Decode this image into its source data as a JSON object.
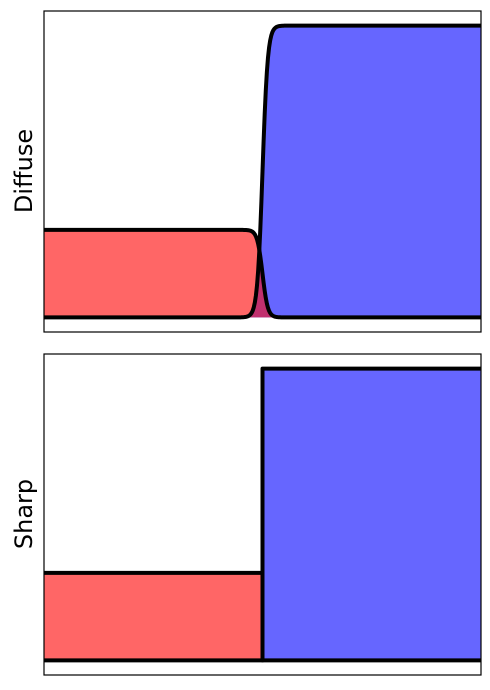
{
  "chart_data": [
    {
      "type": "area",
      "ylabel": "Diffuse",
      "xlabel": "",
      "title": "",
      "xlim": [
        0,
        1
      ],
      "ylim": [
        -0.05,
        1.05
      ],
      "interface_x": 0.5,
      "interface_width": 0.012,
      "series": [
        {
          "color": "#ff6666",
          "left_level": 0.3,
          "right_level": 0.0
        },
        {
          "color": "#6666ff",
          "left_level": 0.0,
          "right_level": 1.0
        }
      ],
      "overlap_color": "#c0306e",
      "outline_color": "#000000",
      "grid": false,
      "ticks": false
    },
    {
      "type": "area",
      "ylabel": "Sharp",
      "xlabel": "",
      "title": "",
      "xlim": [
        0,
        1
      ],
      "ylim": [
        -0.05,
        1.05
      ],
      "interface_x": 0.5,
      "interface_width": 0,
      "series": [
        {
          "color": "#ff6666",
          "left_level": 0.3,
          "right_level": 0.0
        },
        {
          "color": "#6666ff",
          "left_level": 0.0,
          "right_level": 1.0
        }
      ],
      "outline_color": "#000000",
      "grid": false,
      "ticks": false
    }
  ]
}
